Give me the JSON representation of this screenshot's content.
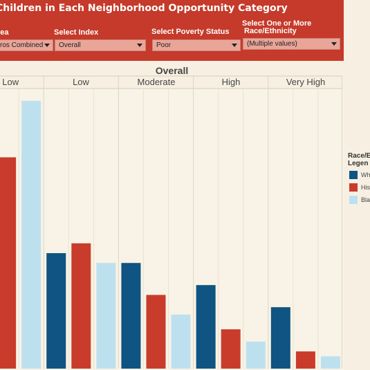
{
  "header": {
    "title": "Children in Each Neighborhood Opportunity Category",
    "filters": [
      {
        "label": "rea",
        "value": "ros Combined"
      },
      {
        "label": "Select Index",
        "value": "Overall"
      },
      {
        "label": "Select Poverty Status",
        "value": "Poor"
      },
      {
        "label": "Select One or More Race/Ethnicity",
        "label_line1": "Select One or More",
        "label_line2": "Race/Ethnicity",
        "value": "(Multiple values)"
      }
    ]
  },
  "legend": {
    "title_line1": "Race/E",
    "title_line2": "Legen",
    "items": [
      "Wh",
      "His",
      "Bla"
    ]
  },
  "colors": {
    "header": "#c53a2a",
    "white": "#0f5482",
    "hispanic": "#c93c2b",
    "black": "#bde0ef",
    "background": "#f7f0e2"
  },
  "chart_data": {
    "type": "bar",
    "title": "Overall",
    "categories": [
      "Very Low",
      "Low",
      "Moderate",
      "High",
      "Very High"
    ],
    "category_labels": [
      "ry Low",
      "Low",
      "Moderate",
      "High",
      "Very High"
    ],
    "series": [
      {
        "name": "Wh",
        "values": [
          null,
          47,
          43,
          34,
          25
        ]
      },
      {
        "name": "His",
        "values": [
          86,
          51,
          30,
          16,
          7
        ]
      },
      {
        "name": "Bla",
        "values": [
          109,
          43,
          22,
          11,
          5
        ]
      }
    ],
    "ylim": [
      0,
      114
    ],
    "grid": true,
    "legend_position": "right"
  }
}
